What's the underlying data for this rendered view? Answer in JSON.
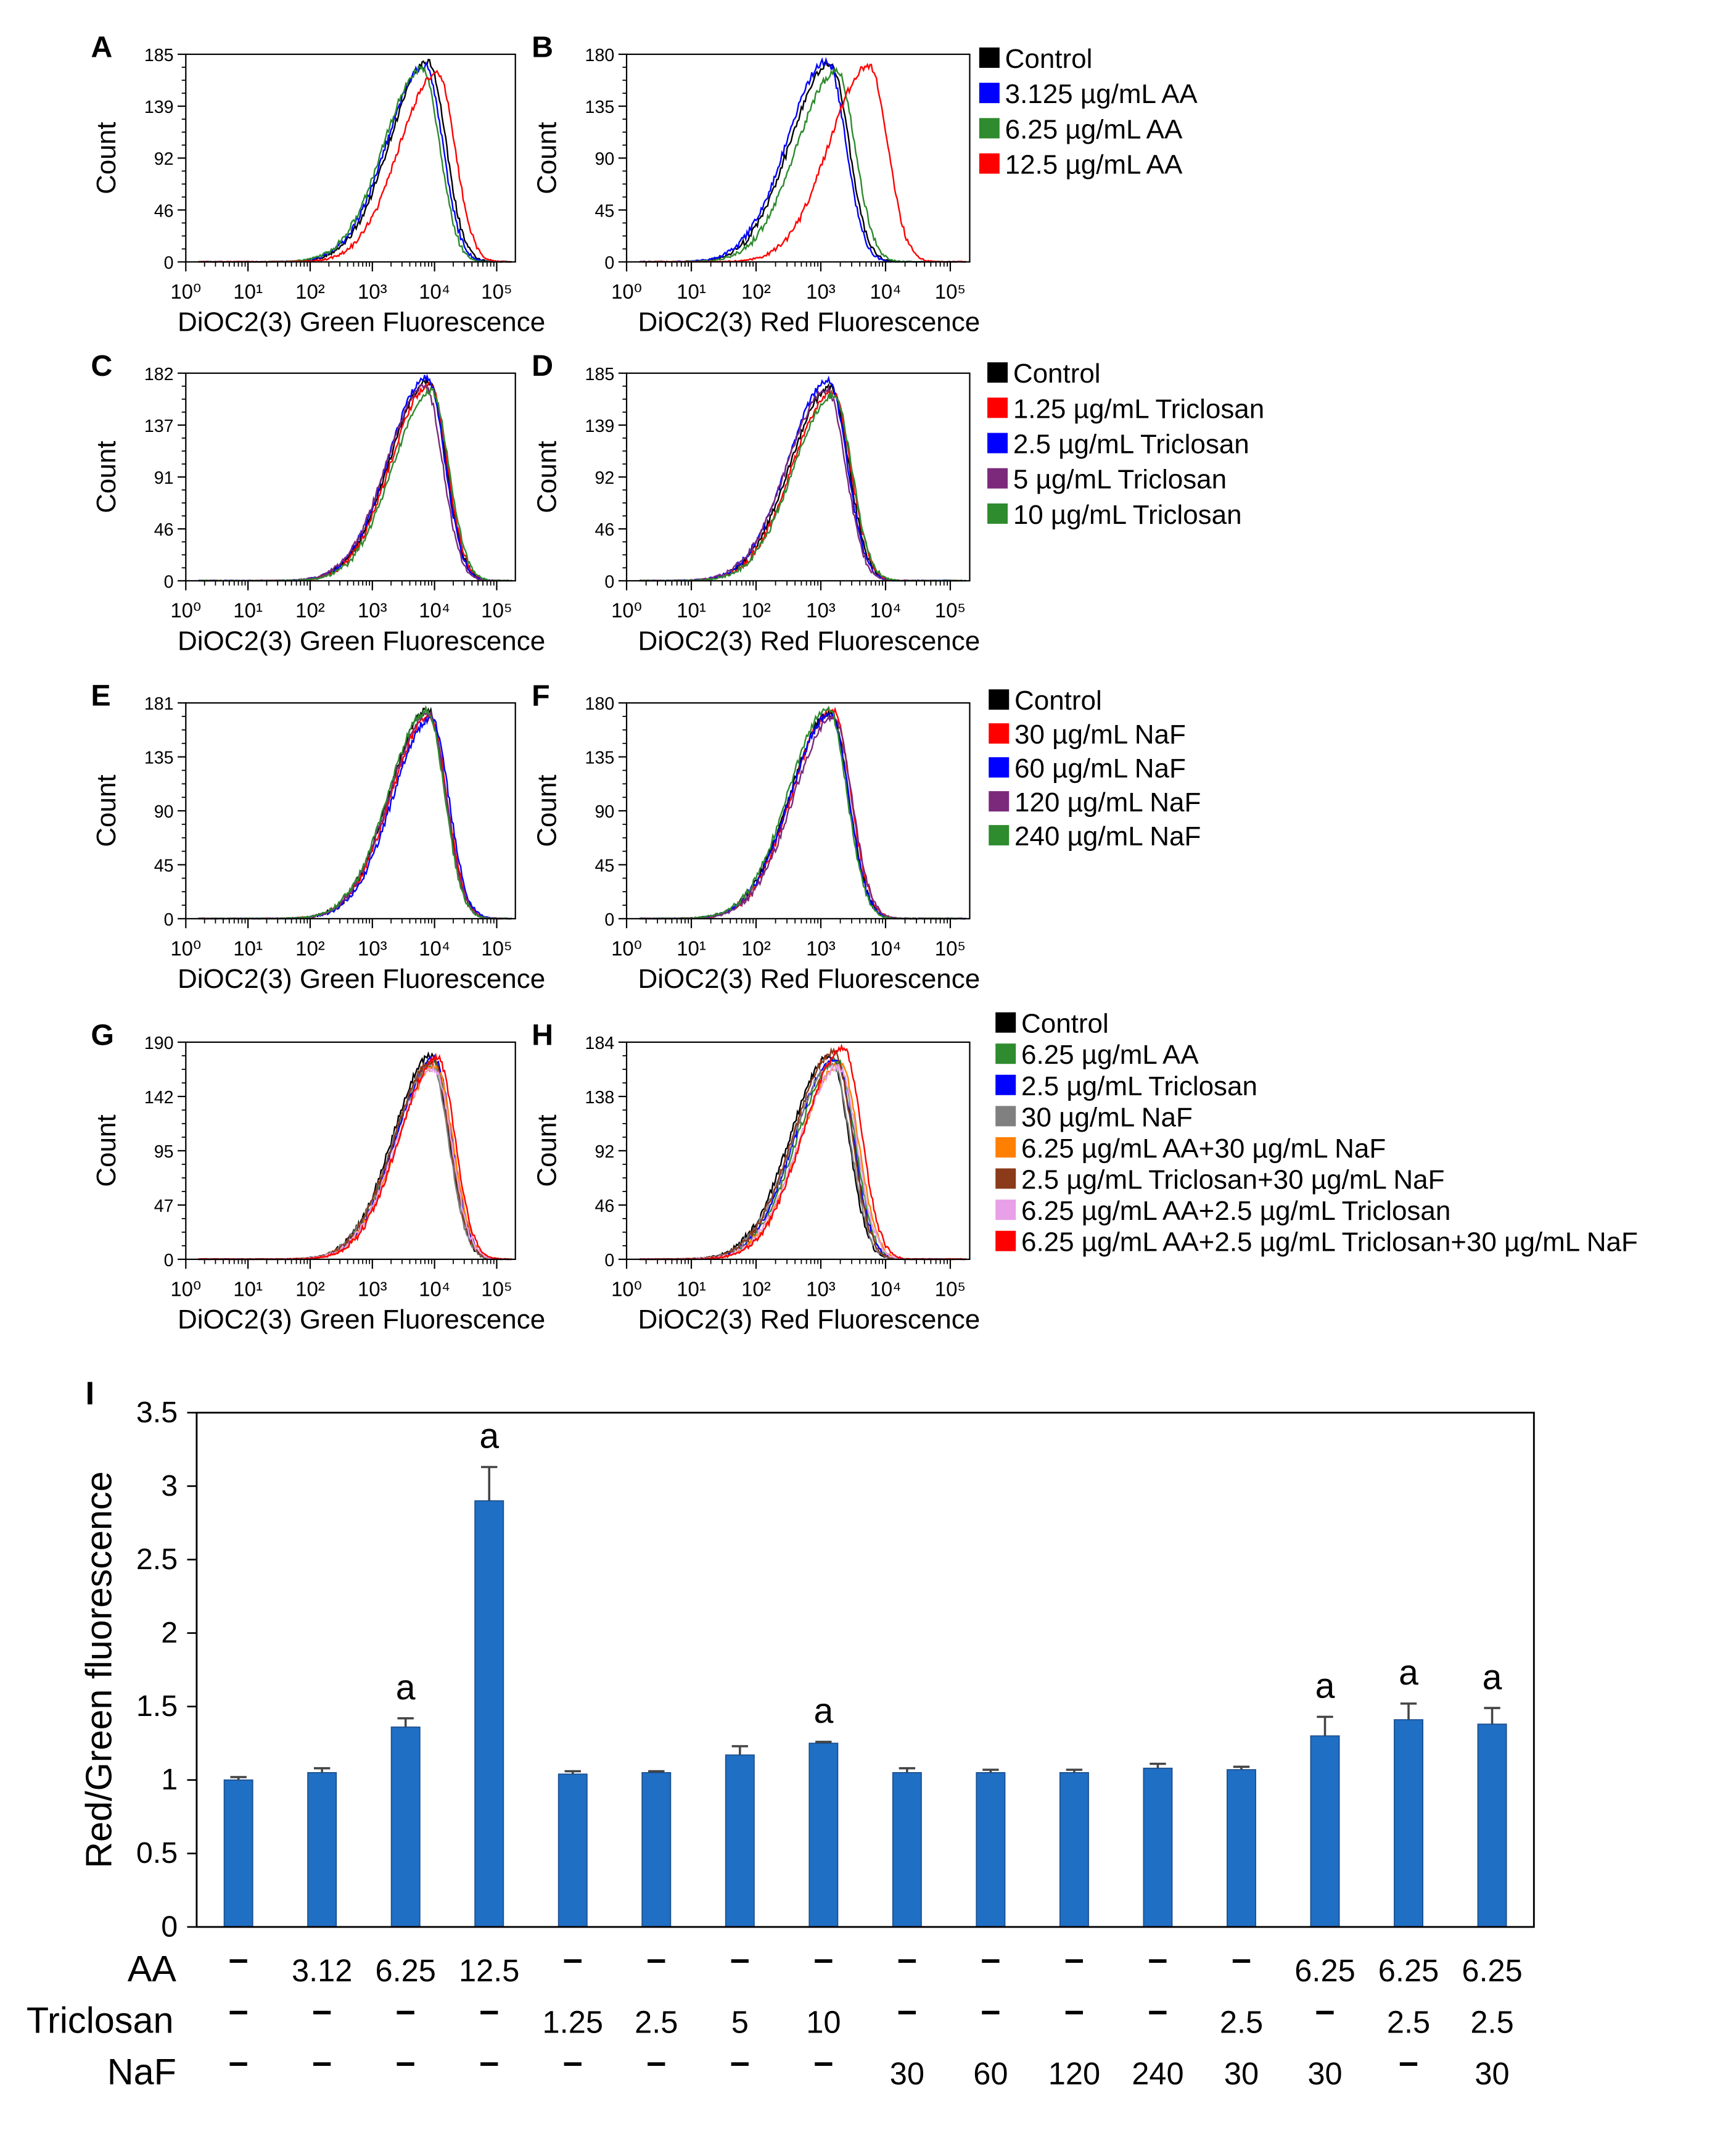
{
  "histogram_panels": {
    "x_tick_labels": [
      "10⁰",
      "10¹",
      "10²",
      "10³",
      "10⁴",
      "10⁵"
    ],
    "y_axis_label": "Count",
    "green_label": "DiOC2(3) Green Fluorescence",
    "red_label": "DiOC2(3) Red Fluorescence"
  },
  "chart_data": [
    {
      "type": "line",
      "panel": "A",
      "xlabel": "DiOC2(3) Green Fluorescence",
      "ylabel": "Count",
      "x_scale": "log10",
      "xlim": [
        0,
        5.3
      ],
      "ylim": [
        0,
        185
      ],
      "yticks": [
        "0",
        "46",
        "92",
        "139",
        "185"
      ],
      "series": [
        {
          "name": "Control",
          "color": "#000000",
          "peak_log": 3.9,
          "peak_count": 178
        },
        {
          "name": "3.125 µg/mL AA",
          "color": "#0000ff",
          "peak_log": 3.85,
          "peak_count": 175
        },
        {
          "name": "6.25 µg/mL AA",
          "color": "#2e8b2e",
          "peak_log": 3.8,
          "peak_count": 172
        },
        {
          "name": "12.5 µg/mL AA",
          "color": "#ff0000",
          "peak_log": 4.05,
          "peak_count": 168
        }
      ]
    },
    {
      "type": "line",
      "panel": "B",
      "xlabel": "DiOC2(3) Red Fluorescence",
      "ylabel": "Count",
      "x_scale": "log10",
      "xlim": [
        0,
        5.3
      ],
      "ylim": [
        0,
        180
      ],
      "yticks": [
        "0",
        "45",
        "90",
        "135",
        "180"
      ],
      "series": [
        {
          "name": "Control",
          "color": "#000000",
          "peak_log": 3.15,
          "peak_count": 172
        },
        {
          "name": "3.125 µg/mL AA",
          "color": "#0000ff",
          "peak_log": 3.1,
          "peak_count": 174
        },
        {
          "name": "6.25 µg/mL AA",
          "color": "#2e8b2e",
          "peak_log": 3.25,
          "peak_count": 165
        },
        {
          "name": "12.5 µg/mL AA",
          "color": "#ff0000",
          "peak_log": 3.75,
          "peak_count": 170
        }
      ]
    },
    {
      "type": "line",
      "panel": "C",
      "xlabel": "DiOC2(3) Green Fluorescence",
      "ylabel": "Count",
      "x_scale": "log10",
      "xlim": [
        0,
        5.3
      ],
      "ylim": [
        0,
        182
      ],
      "yticks": [
        "0",
        "46",
        "91",
        "137",
        "182"
      ],
      "series": [
        {
          "name": "Control",
          "color": "#000000",
          "peak_log": 3.9,
          "peak_count": 175
        },
        {
          "name": "1.25 µg/mL Triclosan",
          "color": "#ff0000",
          "peak_log": 3.92,
          "peak_count": 172
        },
        {
          "name": "2.5 µg/mL Triclosan",
          "color": "#0000ff",
          "peak_log": 3.88,
          "peak_count": 178
        },
        {
          "name": "5 µg/mL Triclosan",
          "color": "#7b2a7b",
          "peak_log": 3.85,
          "peak_count": 170
        },
        {
          "name": "10 µg/mL Triclosan",
          "color": "#2e8b2e",
          "peak_log": 3.95,
          "peak_count": 166
        }
      ]
    },
    {
      "type": "line",
      "panel": "D",
      "xlabel": "DiOC2(3) Red Fluorescence",
      "ylabel": "Count",
      "x_scale": "log10",
      "xlim": [
        0,
        5.3
      ],
      "ylim": [
        0,
        185
      ],
      "yticks": [
        "0",
        "46",
        "92",
        "139",
        "185"
      ],
      "series": [
        {
          "name": "Control",
          "color": "#000000",
          "peak_log": 3.15,
          "peak_count": 172
        },
        {
          "name": "1.25 µg/mL Triclosan",
          "color": "#ff0000",
          "peak_log": 3.18,
          "peak_count": 168
        },
        {
          "name": "2.5 µg/mL Triclosan",
          "color": "#0000ff",
          "peak_log": 3.12,
          "peak_count": 178
        },
        {
          "name": "5 µg/mL Triclosan",
          "color": "#7b2a7b",
          "peak_log": 3.1,
          "peak_count": 170
        },
        {
          "name": "10 µg/mL Triclosan",
          "color": "#2e8b2e",
          "peak_log": 3.2,
          "peak_count": 165
        }
      ]
    },
    {
      "type": "line",
      "panel": "E",
      "xlabel": "DiOC2(3) Green Fluorescence",
      "ylabel": "Count",
      "x_scale": "log10",
      "xlim": [
        0,
        5.3
      ],
      "ylim": [
        0,
        181
      ],
      "yticks": [
        "0",
        "45",
        "90",
        "135",
        "181"
      ],
      "series": [
        {
          "name": "Control",
          "color": "#000000",
          "peak_log": 3.9,
          "peak_count": 175
        },
        {
          "name": "30 µg/mL NaF",
          "color": "#ff0000",
          "peak_log": 3.92,
          "peak_count": 170
        },
        {
          "name": "60 µg/mL NaF",
          "color": "#0000ff",
          "peak_log": 3.95,
          "peak_count": 168
        },
        {
          "name": "120 µg/mL NaF",
          "color": "#7b2a7b",
          "peak_log": 3.9,
          "peak_count": 172
        },
        {
          "name": "240 µg/mL NaF",
          "color": "#2e8b2e",
          "peak_log": 3.88,
          "peak_count": 174
        }
      ]
    },
    {
      "type": "line",
      "panel": "F",
      "xlabel": "DiOC2(3) Red Fluorescence",
      "ylabel": "Count",
      "x_scale": "log10",
      "xlim": [
        0,
        5.3
      ],
      "ylim": [
        0,
        180
      ],
      "yticks": [
        "0",
        "45",
        "90",
        "135",
        "180"
      ],
      "series": [
        {
          "name": "Control",
          "color": "#000000",
          "peak_log": 3.15,
          "peak_count": 172
        },
        {
          "name": "30 µg/mL NaF",
          "color": "#ff0000",
          "peak_log": 3.18,
          "peak_count": 174
        },
        {
          "name": "60 µg/mL NaF",
          "color": "#0000ff",
          "peak_log": 3.15,
          "peak_count": 170
        },
        {
          "name": "120 µg/mL NaF",
          "color": "#7b2a7b",
          "peak_log": 3.2,
          "peak_count": 168
        },
        {
          "name": "240 µg/mL NaF",
          "color": "#2e8b2e",
          "peak_log": 3.12,
          "peak_count": 175
        }
      ]
    },
    {
      "type": "line",
      "panel": "G",
      "xlabel": "DiOC2(3) Green Fluorescence",
      "ylabel": "Count",
      "x_scale": "log10",
      "xlim": [
        0,
        5.3
      ],
      "ylim": [
        0,
        190
      ],
      "yticks": [
        "0",
        "47",
        "95",
        "142",
        "190"
      ],
      "series": [
        {
          "name": "Control",
          "color": "#000000",
          "peak_log": 3.95,
          "peak_count": 178
        },
        {
          "name": "6.25 µg/mL AA",
          "color": "#2e8b2e",
          "peak_log": 3.98,
          "peak_count": 172
        },
        {
          "name": "2.5 µg/mL Triclosan",
          "color": "#0000ff",
          "peak_log": 4.0,
          "peak_count": 175
        },
        {
          "name": "30 µg/mL NaF",
          "color": "#808080",
          "peak_log": 3.95,
          "peak_count": 170
        },
        {
          "name": "6.25 µg/mL AA+30 µg/mL NaF",
          "color": "#ff7f00",
          "peak_log": 4.02,
          "peak_count": 168
        },
        {
          "name": "2.5 µg/mL Triclosan+30 µg/mL NaF",
          "color": "#8b3a1a",
          "peak_log": 3.97,
          "peak_count": 174
        },
        {
          "name": "6.25 µg/mL AA+2.5 µg/mL Triclosan",
          "color": "#e8a0e8",
          "peak_log": 4.0,
          "peak_count": 166
        },
        {
          "name": "6.25 µg/mL AA+2.5 µg/mL Triclosan+30 µg/mL NaF",
          "color": "#ff0000",
          "peak_log": 4.05,
          "peak_count": 176
        }
      ]
    },
    {
      "type": "line",
      "panel": "H",
      "xlabel": "DiOC2(3) Red Fluorescence",
      "ylabel": "Count",
      "x_scale": "log10",
      "xlim": [
        0,
        5.3
      ],
      "ylim": [
        0,
        184
      ],
      "yticks": [
        "0",
        "46",
        "92",
        "138",
        "184"
      ],
      "series": [
        {
          "name": "Control",
          "color": "#000000",
          "peak_log": 3.15,
          "peak_count": 172
        },
        {
          "name": "6.25 µg/mL AA",
          "color": "#2e8b2e",
          "peak_log": 3.25,
          "peak_count": 168
        },
        {
          "name": "2.5 µg/mL Triclosan",
          "color": "#0000ff",
          "peak_log": 3.22,
          "peak_count": 170
        },
        {
          "name": "30 µg/mL NaF",
          "color": "#808080",
          "peak_log": 3.18,
          "peak_count": 165
        },
        {
          "name": "6.25 µg/mL AA+30 µg/mL NaF",
          "color": "#ff7f00",
          "peak_log": 3.3,
          "peak_count": 166
        },
        {
          "name": "2.5 µg/mL Triclosan+30 µg/mL NaF",
          "color": "#8b3a1a",
          "peak_log": 3.2,
          "peak_count": 175
        },
        {
          "name": "6.25 µg/mL AA+2.5 µg/mL Triclosan",
          "color": "#e8a0e8",
          "peak_log": 3.28,
          "peak_count": 163
        },
        {
          "name": "6.25 µg/mL AA+2.5 µg/mL Triclosan+30 µg/mL NaF",
          "color": "#ff0000",
          "peak_log": 3.35,
          "peak_count": 178
        }
      ]
    },
    {
      "type": "bar",
      "panel": "I",
      "ylabel": "Red/Green fluorescence",
      "ylim": [
        0,
        3.5
      ],
      "yticks": [
        "0",
        "0.5",
        "1",
        "1.5",
        "2",
        "2.5",
        "3",
        "3.5"
      ],
      "bar_color": "#1f6fc4",
      "values": [
        1.0,
        1.05,
        1.36,
        2.9,
        1.04,
        1.05,
        1.17,
        1.25,
        1.05,
        1.05,
        1.05,
        1.08,
        1.07,
        1.3,
        1.41,
        1.38
      ],
      "errors": [
        0.02,
        0.03,
        0.06,
        0.23,
        0.02,
        0.01,
        0.06,
        0.01,
        0.03,
        0.02,
        0.02,
        0.03,
        0.02,
        0.13,
        0.11,
        0.11
      ],
      "significance": [
        "",
        "",
        "a",
        "a",
        "",
        "",
        "",
        "a",
        "",
        "",
        "",
        "",
        "",
        "a",
        "a",
        "a"
      ],
      "treatment_rows": [
        {
          "label": "AA",
          "values": [
            "–",
            "3.12",
            "6.25",
            "12.5",
            "–",
            "–",
            "–",
            "–",
            "–",
            "–",
            "–",
            "–",
            "–",
            "6.25",
            "6.25",
            "6.25"
          ]
        },
        {
          "label": "Triclosan",
          "values": [
            "–",
            "–",
            "–",
            "–",
            "1.25",
            "2.5",
            "5",
            "10",
            "–",
            "–",
            "–",
            "–",
            "2.5",
            "–",
            "2.5",
            "2.5"
          ]
        },
        {
          "label": "NaF",
          "values": [
            "–",
            "–",
            "–",
            "–",
            "–",
            "–",
            "–",
            "–",
            "30",
            "60",
            "120",
            "240",
            "30",
            "30",
            "–",
            "30"
          ]
        }
      ]
    }
  ]
}
